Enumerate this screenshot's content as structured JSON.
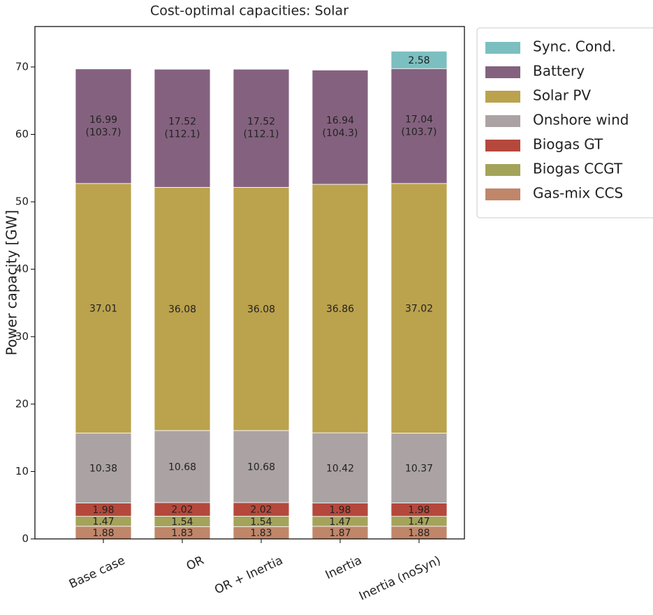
{
  "chart_data": {
    "type": "stacked_bar",
    "title": "Cost-optimal capacities: Solar",
    "y_label": "Power capacity [GW]",
    "categories": [
      "Base case",
      "OR",
      "OR + Inertia",
      "Inertia",
      "Inertia (noSyn)"
    ],
    "series": [
      {
        "name": "Gas-mix CCS",
        "color": "#c0866a",
        "values": [
          1.88,
          1.83,
          1.83,
          1.87,
          1.88
        ]
      },
      {
        "name": "Biogas CCGT",
        "color": "#a4a35a",
        "values": [
          1.47,
          1.54,
          1.54,
          1.47,
          1.47
        ]
      },
      {
        "name": "Biogas GT",
        "color": "#b5483c",
        "values": [
          1.98,
          2.02,
          2.02,
          1.98,
          1.98
        ]
      },
      {
        "name": "Onshore wind",
        "color": "#aba3a3",
        "values": [
          10.38,
          10.68,
          10.68,
          10.42,
          10.37
        ]
      },
      {
        "name": "Solar PV",
        "color": "#bba24d",
        "values": [
          37.01,
          36.08,
          36.08,
          36.86,
          37.02
        ]
      },
      {
        "name": "Battery",
        "color": "#84627f",
        "values": [
          16.99,
          17.52,
          17.52,
          16.94,
          17.04
        ],
        "energy_labels": [
          "(103.7)",
          "(112.1)",
          "(112.1)",
          "(104.3)",
          "(103.7)"
        ]
      },
      {
        "name": "Sync. Cond.",
        "color": "#7bbfc1",
        "values": [
          null,
          null,
          null,
          null,
          2.58
        ]
      }
    ],
    "ylim": [
      0,
      76
    ],
    "yticks": [
      0,
      10,
      20,
      30,
      40,
      50,
      60,
      70
    ],
    "legend": "outside-upper-right"
  }
}
